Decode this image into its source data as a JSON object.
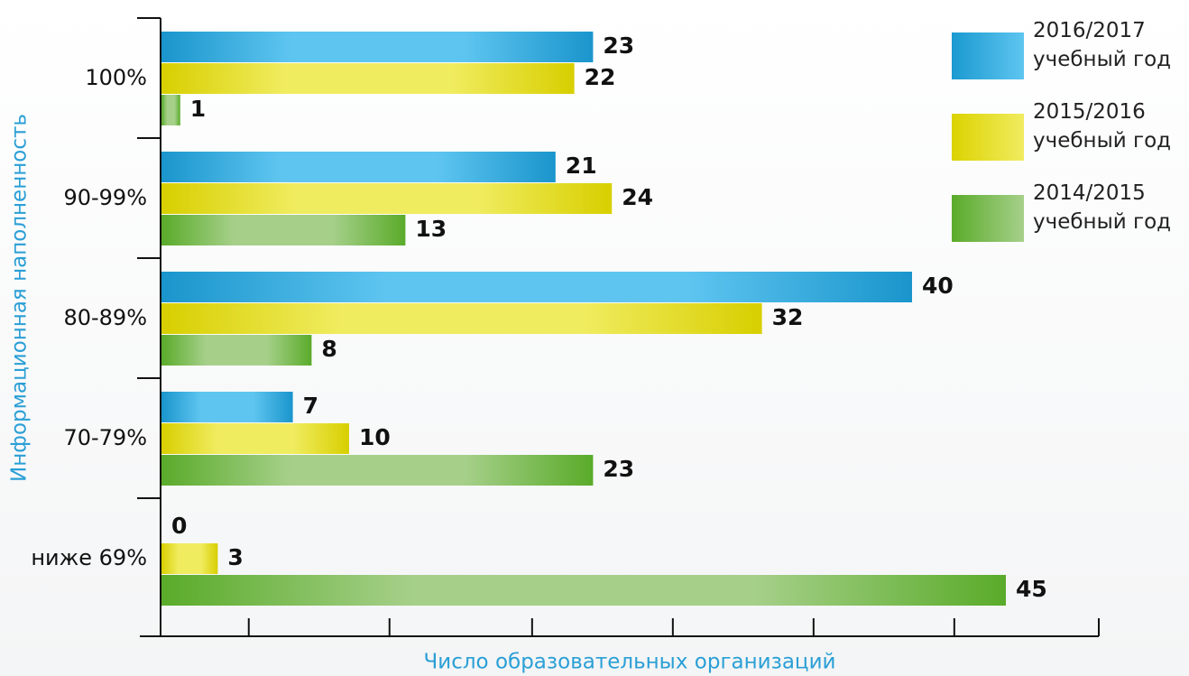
{
  "chart_data": {
    "type": "hbar",
    "xlabel": "Число образовательных организаций",
    "ylabel": "Информационная наполненность",
    "categories": [
      "100%",
      "90-99%",
      "80-89%",
      "70-79%",
      "ниже 69%"
    ],
    "series": [
      {
        "name": "2016/2017 учебный год",
        "color": "#1a9ad0",
        "values": [
          23,
          21,
          40,
          7,
          0
        ]
      },
      {
        "name": "2015/2016 учебный год",
        "color": "#dcd300",
        "values": [
          22,
          24,
          32,
          10,
          3
        ]
      },
      {
        "name": "2014/2015 учебный год",
        "color": "#5aab2a",
        "values": [
          1,
          13,
          8,
          23,
          45
        ]
      }
    ],
    "xlim": [
      0,
      50
    ],
    "xticks": [
      4.7,
      12.2,
      19.8,
      27.3,
      34.8,
      42.3,
      50
    ]
  }
}
